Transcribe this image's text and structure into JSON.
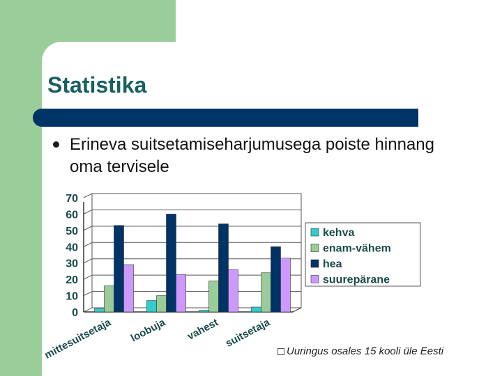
{
  "slide": {
    "title": "Statistika",
    "bullet": "Erineva suitsetamiseharjumusega poiste hinnang oma tervisele",
    "footnote": "Uuringus osales 15 kooli üle Eesti"
  },
  "chart_data": {
    "type": "bar",
    "categories": [
      "mittesuitsetaja",
      "loobuja",
      "vahest",
      "suitsetaja"
    ],
    "series": [
      {
        "name": "kehva",
        "values": [
          2,
          7,
          1,
          3
        ],
        "color": "#33cccc"
      },
      {
        "name": "enam-vähem",
        "values": [
          16,
          10,
          19,
          24
        ],
        "color": "#99cc99"
      },
      {
        "name": "hea",
        "values": [
          53,
          60,
          54,
          40
        ],
        "color": "#003366"
      },
      {
        "name": "suurepärane",
        "values": [
          29,
          23,
          26,
          33
        ],
        "color": "#cc99ff"
      }
    ],
    "yticks": [
      "0",
      "10",
      "20",
      "30",
      "40",
      "50",
      "60",
      "70"
    ],
    "ylim": [
      0,
      70
    ],
    "grid": true,
    "legend": "right"
  }
}
